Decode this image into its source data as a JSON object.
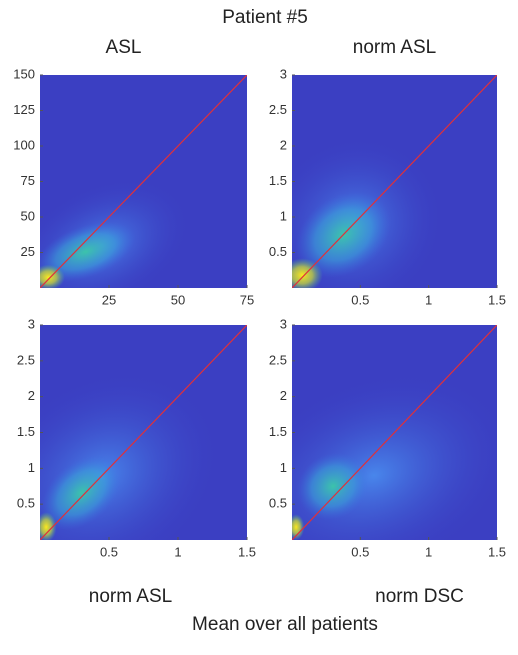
{
  "title": "Patient #5",
  "footer": "Mean over all patients",
  "chart_data": [
    {
      "type": "density",
      "title": "ASL",
      "xlim": [
        0,
        75
      ],
      "xticks": [
        25,
        50,
        75
      ],
      "ylim": [
        0,
        150
      ],
      "yticks": [
        25,
        50,
        75,
        100,
        125,
        150
      ],
      "line": {
        "color": "#e0303a",
        "x": [
          0,
          75
        ],
        "values": [
          0,
          150
        ]
      }
    },
    {
      "type": "density",
      "title": "norm ASL",
      "xlim": [
        0,
        1.5
      ],
      "xticks": [
        0.5,
        1,
        1.5
      ],
      "ylim": [
        0,
        3
      ],
      "yticks": [
        0.5,
        1,
        1.5,
        2,
        2.5,
        3
      ],
      "line": {
        "color": "#e0303a",
        "x": [
          0,
          1.5
        ],
        "values": [
          0,
          3
        ]
      }
    },
    {
      "type": "density",
      "xlabel": "norm ASL",
      "xlim": [
        0,
        1.5
      ],
      "xticks": [
        0.5,
        1,
        1.5
      ],
      "ylim": [
        0,
        3
      ],
      "yticks": [
        0.5,
        1,
        1.5,
        2,
        2.5,
        3
      ],
      "line": {
        "color": "#e0303a",
        "x": [
          0,
          1.5
        ],
        "values": [
          0,
          3
        ]
      }
    },
    {
      "type": "density",
      "xlabel": "norm DSC",
      "xlim": [
        0,
        1.5
      ],
      "xticks": [
        0.5,
        1,
        1.5
      ],
      "ylim": [
        0,
        3
      ],
      "yticks": [
        0.5,
        1,
        1.5,
        2,
        2.5,
        3
      ],
      "line": {
        "color": "#e0303a",
        "x": [
          0,
          1.5
        ],
        "values": [
          0,
          3
        ]
      }
    }
  ]
}
